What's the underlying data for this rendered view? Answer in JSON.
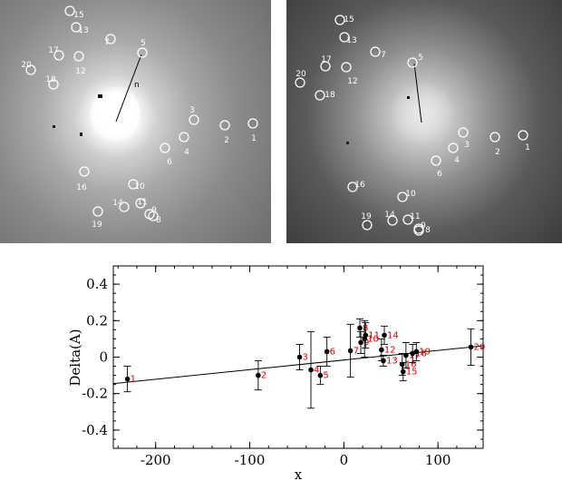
{
  "image_panels": [
    {
      "name": "left",
      "marker_labels": [
        "1",
        "2",
        "3",
        "4",
        "5",
        "6",
        "7",
        "8",
        "9",
        "10",
        "11",
        "12",
        "13",
        "14",
        "15",
        "16",
        "17",
        "18",
        "19",
        "20"
      ],
      "line_label": "n"
    },
    {
      "name": "right",
      "marker_labels": [
        "1",
        "2",
        "3",
        "4",
        "5",
        "6",
        "7",
        "8",
        "9",
        "10",
        "11",
        "12",
        "13",
        "14",
        "15",
        "16",
        "17",
        "18",
        "19",
        "20"
      ]
    }
  ],
  "colors": {
    "marker": "#ffffff",
    "point_label": "#e00000",
    "point": "#000000",
    "fit_line": "#000000"
  },
  "chart_data": {
    "type": "scatter",
    "xlabel": "x",
    "ylabel": "Delta(A)",
    "xlim": [
      -245,
      148
    ],
    "ylim": [
      -0.5,
      0.5
    ],
    "xticks": [
      "-200",
      "-100",
      "0",
      "100"
    ],
    "yticks": [
      "-0.4",
      "-0.2",
      "0",
      "0.2",
      "0.4"
    ],
    "points": [
      {
        "label": "1",
        "x": -230,
        "y": -0.12,
        "err": 0.07
      },
      {
        "label": "2",
        "x": -91,
        "y": -0.1,
        "err": 0.08
      },
      {
        "label": "3",
        "x": -47,
        "y": 0.0,
        "err": 0.07
      },
      {
        "label": "4",
        "x": -35,
        "y": -0.07,
        "err": 0.21
      },
      {
        "label": "5",
        "x": -25,
        "y": -0.1,
        "err": 0.05
      },
      {
        "label": "6",
        "x": -18,
        "y": 0.03,
        "err": 0.08
      },
      {
        "label": "7",
        "x": 7,
        "y": 0.035,
        "err": 0.145
      },
      {
        "label": "8",
        "x": 17,
        "y": 0.16,
        "err": 0.05
      },
      {
        "label": "9",
        "x": 18,
        "y": 0.08,
        "err": 0.06
      },
      {
        "label": "10",
        "x": 22,
        "y": 0.1,
        "err": 0.1
      },
      {
        "label": "11",
        "x": 23,
        "y": 0.12,
        "err": 0.07
      },
      {
        "label": "12",
        "x": 40,
        "y": 0.04,
        "err": 0.06
      },
      {
        "label": "13",
        "x": 42,
        "y": -0.02,
        "err": 0.03
      },
      {
        "label": "14",
        "x": 43,
        "y": 0.12,
        "err": 0.05
      },
      {
        "label": "15",
        "x": 63,
        "y": -0.08,
        "err": 0.05
      },
      {
        "label": "16",
        "x": 62,
        "y": -0.04,
        "err": 0.06
      },
      {
        "label": "17",
        "x": 66,
        "y": 0.01,
        "err": 0.07
      },
      {
        "label": "18",
        "x": 73,
        "y": 0.02,
        "err": 0.05
      },
      {
        "label": "19",
        "x": 77,
        "y": 0.03,
        "err": 0.05
      },
      {
        "label": "20",
        "x": 135,
        "y": 0.055,
        "err": 0.1
      }
    ],
    "fit_line": {
      "x": [
        -245,
        148
      ],
      "y": [
        -0.145,
        0.062
      ]
    }
  }
}
